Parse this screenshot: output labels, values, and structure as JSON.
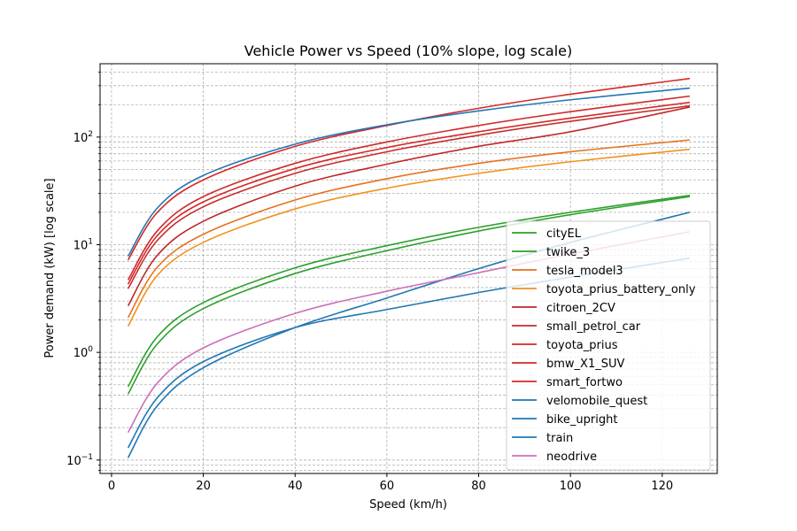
{
  "chart_data": {
    "type": "line",
    "title": "Vehicle Power vs Speed (10% slope, log scale)",
    "xlabel": "Speed (km/h)",
    "ylabel": "Power demand (kW) [log scale]",
    "xlim": [
      -2.5,
      132
    ],
    "ylim": [
      0.075,
      480
    ],
    "yscale": "log",
    "grid": true,
    "legend_position": "lower-right",
    "x_ticks": [
      0,
      20,
      40,
      60,
      80,
      100,
      120
    ],
    "y_ticks": [
      {
        "value": 0.1,
        "base": "10",
        "exp": "−1"
      },
      {
        "value": 1,
        "base": "10",
        "exp": "0"
      },
      {
        "value": 10,
        "base": "10",
        "exp": "1"
      },
      {
        "value": 100,
        "base": "10",
        "exp": "2"
      }
    ],
    "x": [
      3.6,
      10,
      20,
      40,
      60,
      80,
      100,
      126
    ],
    "series": [
      {
        "name": "cityEL",
        "color": "#2ca02c",
        "values": [
          0.48,
          1.4,
          2.9,
          6.1,
          9.8,
          14.5,
          20.0,
          28.7
        ]
      },
      {
        "name": "twike_3",
        "color": "#2ca02c",
        "values": [
          0.41,
          1.2,
          2.55,
          5.4,
          8.8,
          13.4,
          19.0,
          28.0
        ]
      },
      {
        "name": "tesla_model3",
        "color": "#e6711d",
        "values": [
          2.1,
          6.2,
          12.5,
          26.0,
          41.0,
          57.0,
          73.0,
          94.0
        ]
      },
      {
        "name": "toyota_prius_battery_only",
        "color": "#f2921f",
        "values": [
          1.75,
          5.2,
          10.5,
          21.5,
          33.5,
          46.0,
          59.0,
          77.0
        ]
      },
      {
        "name": "citroen_2CV",
        "color": "#c0282a",
        "values": [
          2.7,
          8.0,
          16.5,
          35.0,
          56.0,
          82.0,
          112.0,
          190.0
        ]
      },
      {
        "name": "small_petrol_car",
        "color": "#c62d2b",
        "values": [
          3.9,
          11.0,
          22.5,
          46.0,
          73.0,
          104.0,
          140.0,
          195.0
        ]
      },
      {
        "name": "toyota_prius",
        "color": "#d62728",
        "values": [
          4.3,
          12.2,
          25.0,
          51.0,
          80.0,
          112.0,
          150.0,
          210.0
        ]
      },
      {
        "name": "bmw_X1_SUV",
        "color": "#cf2a2a",
        "values": [
          4.7,
          13.5,
          28.0,
          57.0,
          90.0,
          128.0,
          172.0,
          240.0
        ]
      },
      {
        "name": "smart_fortwo",
        "color": "#d62728",
        "values": [
          7.2,
          20.0,
          40.0,
          82.0,
          128.0,
          185.0,
          250.0,
          350.0
        ]
      },
      {
        "name": "velomobile_quest",
        "color": "#1f77b4",
        "values": [
          0.13,
          0.38,
          0.82,
          1.7,
          2.5,
          3.6,
          5.0,
          7.5
        ]
      },
      {
        "name": "bike_upright",
        "color": "#1f77b4",
        "values": [
          0.105,
          0.32,
          0.72,
          1.7,
          3.2,
          6.0,
          10.5,
          20.0
        ]
      },
      {
        "name": "train",
        "color": "#1f77b4",
        "values": [
          7.8,
          22.0,
          44.0,
          86.0,
          130.0,
          175.0,
          222.0,
          285.0
        ]
      },
      {
        "name": "neodrive",
        "color": "#cc6fb8",
        "values": [
          0.18,
          0.52,
          1.1,
          2.3,
          3.7,
          5.5,
          8.2,
          13.2
        ]
      }
    ]
  }
}
